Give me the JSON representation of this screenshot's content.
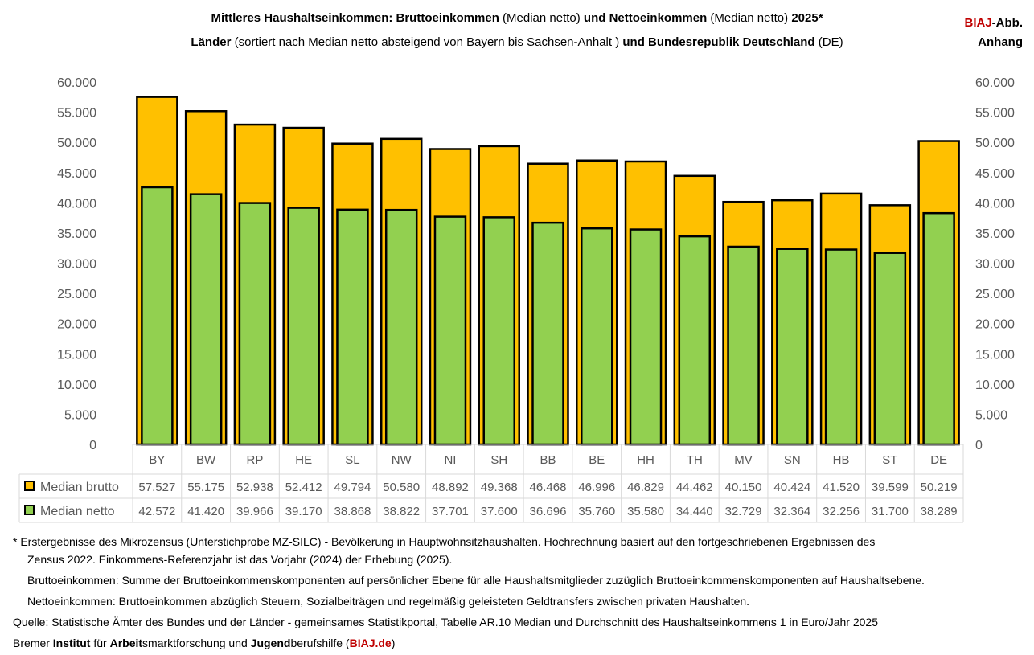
{
  "title": {
    "line1": [
      {
        "t": "Mittleres Haushaltseinkommen: Bruttoeinkommen",
        "b": true
      },
      {
        "t": " (Median netto) ",
        "b": false
      },
      {
        "t": " und Nettoeinkommen",
        "b": true
      },
      {
        "t": " (Median netto) ",
        "b": false
      },
      {
        "t": "2025*",
        "b": true
      }
    ],
    "line2": [
      {
        "t": "Länder",
        "b": true
      },
      {
        "t": " (sortiert nach Median netto absteigend von Bayern bis Sachsen-Anhalt ) ",
        "b": false
      },
      {
        "t": "und Bundesrepublik Deutschland",
        "b": true
      },
      {
        "t": " (DE)",
        "b": false
      }
    ]
  },
  "brand": {
    "red": "BIAJ",
    "rest": "-Abb.",
    "line2": "Anhang"
  },
  "chart_data": {
    "type": "bar",
    "categories": [
      "BY",
      "BW",
      "RP",
      "HE",
      "SL",
      "NW",
      "NI",
      "SH",
      "BB",
      "BE",
      "HH",
      "TH",
      "MV",
      "SN",
      "HB",
      "ST",
      "DE"
    ],
    "series": [
      {
        "name": "Median brutto",
        "color": "#ffc000",
        "values": [
          57527,
          55175,
          52938,
          52412,
          49794,
          50580,
          48892,
          49368,
          46468,
          46996,
          46829,
          44462,
          40150,
          40424,
          41520,
          39599,
          50219
        ],
        "labels": [
          "57.527",
          "55.175",
          "52.938",
          "52.412",
          "49.794",
          "50.580",
          "48.892",
          "49.368",
          "46.468",
          "46.996",
          "46.829",
          "44.462",
          "40.150",
          "40.424",
          "41.520",
          "39.599",
          "50.219"
        ]
      },
      {
        "name": "Median netto",
        "color": "#92d050",
        "values": [
          42572,
          41420,
          39966,
          39170,
          38868,
          38822,
          37701,
          37600,
          36696,
          35760,
          35580,
          34440,
          32729,
          32364,
          32256,
          31700,
          38289
        ],
        "labels": [
          "42.572",
          "41.420",
          "39.966",
          "39.170",
          "38.868",
          "38.822",
          "37.701",
          "37.600",
          "36.696",
          "35.760",
          "35.580",
          "34.440",
          "32.729",
          "32.364",
          "32.256",
          "31.700",
          "38.289"
        ]
      }
    ],
    "ylim": [
      0,
      60000
    ],
    "yticks": [
      "0",
      "5.000",
      "10.000",
      "15.000",
      "20.000",
      "25.000",
      "30.000",
      "35.000",
      "40.000",
      "45.000",
      "50.000",
      "55.000",
      "60.000"
    ],
    "grid": false,
    "legend": "data-table"
  },
  "footnotes": [
    "*  Erstergebnisse des Mikrozensus (Unterstichprobe MZ-SILC) - Bevölkerung in Hauptwohnsitzhaushalten. Hochrechnung basiert auf den fortgeschriebenen Ergebnissen des",
    "Zensus 2022. Einkommens-Referenzjahr ist das Vorjahr (2024) der Erhebung (2025).",
    "Bruttoeinkommen: Summe der Bruttoeinkommenskomponenten auf persönlicher Ebene für alle Haushaltsmitglieder zuzüglich Bruttoeinkommenskomponenten auf Haushaltsebene.",
    "Nettoeinkommen: Bruttoeinkommen abzüglich Steuern, Sozialbeiträgen und regelmäßig geleisteten Geldtransfers zwischen privaten Haushalten.",
    "Quelle: Statistische Ämter des Bundes und der Länder - gemeinsames Statistikportal, Tabelle AR.10 Median und Durchschnitt des Haushaltseinkommens 1 in Euro/Jahr 2025"
  ],
  "credit": [
    {
      "t": "Bremer ",
      "s": ""
    },
    {
      "t": "Institut",
      "s": "b"
    },
    {
      "t": " für ",
      "s": ""
    },
    {
      "t": "Arbeit",
      "s": "b"
    },
    {
      "t": "smarktforschung und ",
      "s": ""
    },
    {
      "t": "Jugend",
      "s": "b"
    },
    {
      "t": "berufshilfe (",
      "s": ""
    },
    {
      "t": "BIAJ.de",
      "s": "red"
    },
    {
      "t": ")",
      "s": ""
    }
  ]
}
